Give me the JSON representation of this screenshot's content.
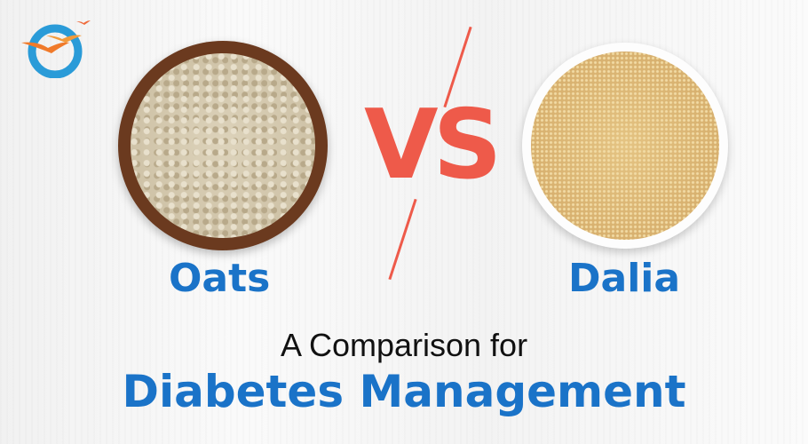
{
  "left_item": {
    "label": "Oats"
  },
  "right_item": {
    "label": "Dalia"
  },
  "versus": "VS",
  "subtitle": "A Comparison for",
  "title": "Diabetes Management",
  "colors": {
    "accent_blue": "#1a73c8",
    "vs_red": "#ee5a4a",
    "logo_blue": "#2a9bd8",
    "logo_orange": "#f07a2a"
  },
  "logo": {
    "icon": "birds-circle-logo"
  }
}
